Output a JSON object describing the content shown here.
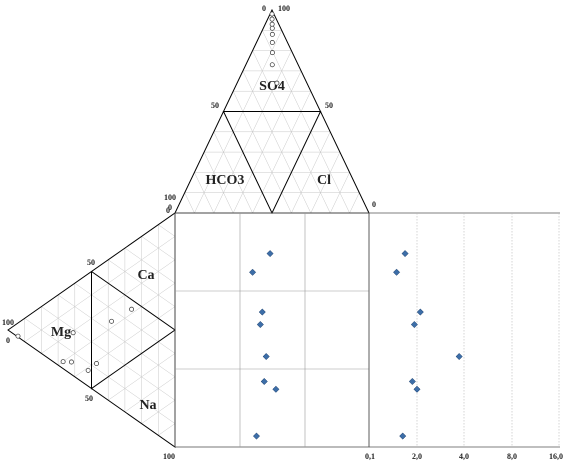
{
  "chart_data": {
    "type": "scatter",
    "title": "",
    "anion_triangle": {
      "labels": {
        "top": "SO4",
        "left": "HCO3",
        "right": "Cl"
      },
      "tick_labels": {
        "apex_left": "0",
        "apex_right": "100",
        "mid_left": "50",
        "mid_right": "50",
        "base_left": "100",
        "base_left_zero": "0",
        "base_right": "0"
      }
    },
    "cation_triangle": {
      "labels": {
        "left": "Mg",
        "top": "Ca",
        "bottom": "Na"
      },
      "tick_labels": {
        "apex": "100",
        "apex_zero": "0",
        "upper_mid": "50",
        "lower_mid": "50",
        "top_zero": "0",
        "bottom": "100"
      }
    },
    "x_axis_ticks": [
      "0,1",
      "2,0",
      "4,0",
      "8,0",
      "16,0"
    ],
    "points_anion": [
      {
        "u": 0.02,
        "v": 0.005
      },
      {
        "u": 0.045,
        "v": 0.005
      },
      {
        "u": 0.07,
        "v": 0.01
      },
      {
        "u": 0.09,
        "v": 0.015
      },
      {
        "u": 0.12,
        "v": 0.015
      },
      {
        "u": 0.16,
        "v": 0.01
      },
      {
        "u": 0.21,
        "v": 0.01
      },
      {
        "u": 0.27,
        "v": 0.005
      },
      {
        "u": 0.36,
        "v": 0.07
      }
    ],
    "points_cation": [
      {
        "a": 0.74,
        "b": 0.62
      },
      {
        "a": 0.62,
        "b": 0.56
      },
      {
        "a": 0.39,
        "b": 0.47
      },
      {
        "a": 0.53,
        "b": 0.23
      },
      {
        "a": 0.48,
        "b": 0.14
      },
      {
        "a": 0.38,
        "b": 0.14
      },
      {
        "a": 0.33,
        "b": 0.09
      },
      {
        "a": 0.06,
        "b": 0.06
      }
    ],
    "points_mid_panel": [
      {
        "x": 0.49,
        "row": 0,
        "y": 0.52
      },
      {
        "x": 0.4,
        "row": 0,
        "y": 0.76
      },
      {
        "x": 0.45,
        "row": 1,
        "y": 0.27
      },
      {
        "x": 0.44,
        "row": 1,
        "y": 0.43
      },
      {
        "x": 0.47,
        "row": 1,
        "y": 0.84
      },
      {
        "x": 0.46,
        "row": 2,
        "y": 0.16
      },
      {
        "x": 0.52,
        "row": 2,
        "y": 0.26
      },
      {
        "x": 0.42,
        "row": 2,
        "y": 0.86
      }
    ],
    "points_right_panel": [
      {
        "x": 0.95,
        "row": 0,
        "y": 0.52
      },
      {
        "x": 0.56,
        "row": 0,
        "y": 0.76
      },
      {
        "x": 2.1,
        "row": 1,
        "y": 0.27
      },
      {
        "x": 1.7,
        "row": 1,
        "y": 0.43
      },
      {
        "x": 3.7,
        "row": 1,
        "y": 0.84
      },
      {
        "x": 1.5,
        "row": 2,
        "y": 0.16
      },
      {
        "x": 2.0,
        "row": 2,
        "y": 0.26
      },
      {
        "x": 0.82,
        "row": 2,
        "y": 0.86
      }
    ]
  }
}
